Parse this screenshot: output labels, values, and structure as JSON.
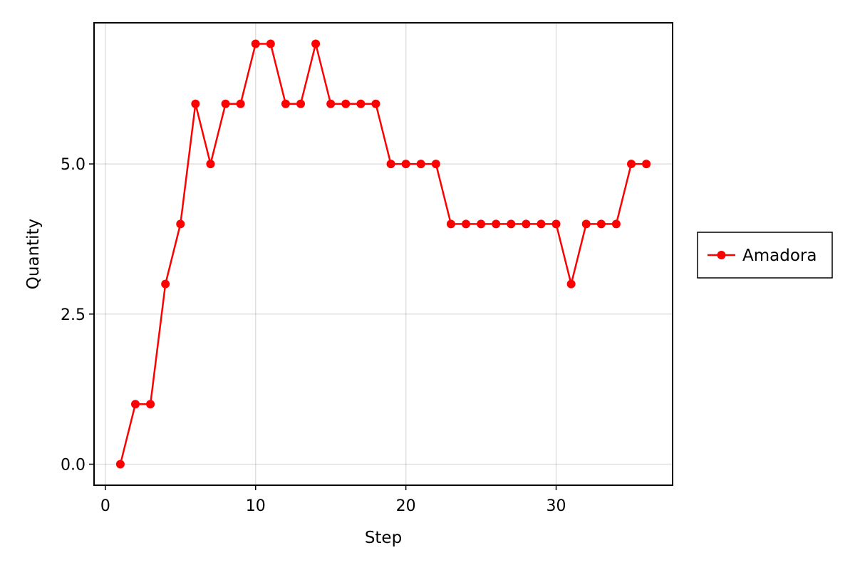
{
  "chart_data": {
    "type": "line",
    "title": "",
    "xlabel": "Step",
    "ylabel": "Quantity",
    "xlim": [
      -0.75,
      37.75
    ],
    "ylim": [
      -0.35,
      7.35
    ],
    "x_ticks": [
      0,
      10,
      20,
      30
    ],
    "y_ticks": [
      0.0,
      2.5,
      5.0
    ],
    "x_tick_labels": [
      "0",
      "10",
      "20",
      "30"
    ],
    "y_tick_labels": [
      "0.0",
      "2.5",
      "5.0"
    ],
    "grid": true,
    "legend_position": "right",
    "series": [
      {
        "name": "Amadora",
        "color": "#ff0000",
        "marker": "circle",
        "x": [
          1,
          2,
          3,
          4,
          5,
          6,
          7,
          8,
          9,
          10,
          11,
          12,
          13,
          14,
          15,
          16,
          17,
          18,
          19,
          20,
          21,
          22,
          23,
          24,
          25,
          26,
          27,
          28,
          29,
          30,
          31,
          32,
          33,
          34,
          35,
          36
        ],
        "y": [
          0,
          1,
          1,
          3,
          4,
          6,
          5,
          6,
          6,
          7,
          7,
          6,
          6,
          7,
          6,
          6,
          6,
          6,
          5,
          5,
          5,
          5,
          4,
          4,
          4,
          4,
          4,
          4,
          4,
          4,
          3,
          4,
          4,
          4,
          5,
          5
        ]
      }
    ]
  }
}
